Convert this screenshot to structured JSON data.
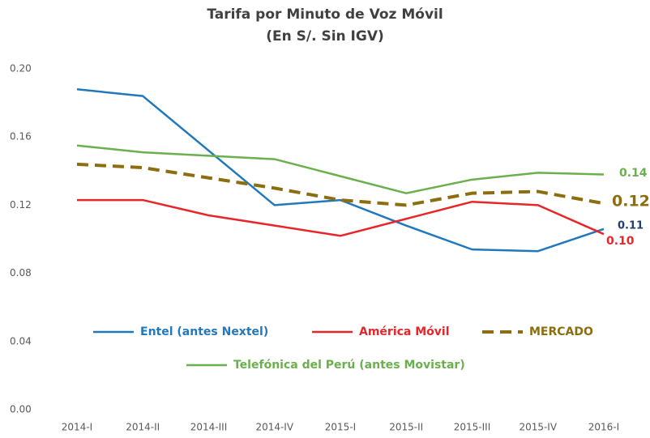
{
  "chart_data": {
    "type": "line",
    "title": "Tarifa por Minuto de Voz Móvil",
    "subtitle": "(En S/. Sin IGV)",
    "categories": [
      "2014-I",
      "2014-II",
      "2014-III",
      "2014-IV",
      "2015-I",
      "2015-II",
      "2015-III",
      "2015-IV",
      "2016-I"
    ],
    "series": [
      {
        "name": "Entel (antes Nextel)",
        "color": "#2278bd",
        "values": [
          0.188,
          0.184,
          0.152,
          0.12,
          0.123,
          0.108,
          0.094,
          0.093,
          0.106
        ],
        "value_labels": [
          null,
          null,
          null,
          null,
          null,
          null,
          null,
          null,
          "0.11"
        ]
      },
      {
        "name": "América Móvil",
        "color": "#e8262a",
        "values": [
          0.123,
          0.123,
          0.114,
          0.108,
          0.102,
          0.112,
          0.122,
          0.12,
          0.103
        ],
        "value_labels": [
          null,
          null,
          null,
          null,
          null,
          null,
          null,
          null,
          "0.10"
        ]
      },
      {
        "name": "MERCADO",
        "color": "#8c6d0f",
        "dashed": true,
        "values": [
          0.144,
          0.142,
          0.136,
          0.13,
          0.123,
          0.12,
          0.127,
          0.128,
          0.121
        ],
        "value_labels": [
          null,
          null,
          null,
          null,
          null,
          null,
          null,
          null,
          "0.12"
        ]
      },
      {
        "name": "Telefónica del Perú (antes Movistar)",
        "color": "#6ab04c",
        "values": [
          0.155,
          0.151,
          0.149,
          0.147,
          0.137,
          0.127,
          0.135,
          0.139,
          0.138
        ],
        "value_labels": [
          null,
          null,
          null,
          null,
          null,
          null,
          null,
          null,
          "0.14"
        ]
      }
    ],
    "ylim": [
      0,
      0.2
    ],
    "yticks": [
      {
        "value": 0,
        "label": "0.00"
      },
      {
        "value": 0.04,
        "label": "0.04"
      },
      {
        "value": 0.08,
        "label": "0.08"
      },
      {
        "value": 0.12,
        "label": "0.12"
      },
      {
        "value": 0.16,
        "label": "0.16"
      },
      {
        "value": 0.2,
        "label": "0.20"
      }
    ],
    "grid": false,
    "legend": "inside"
  }
}
